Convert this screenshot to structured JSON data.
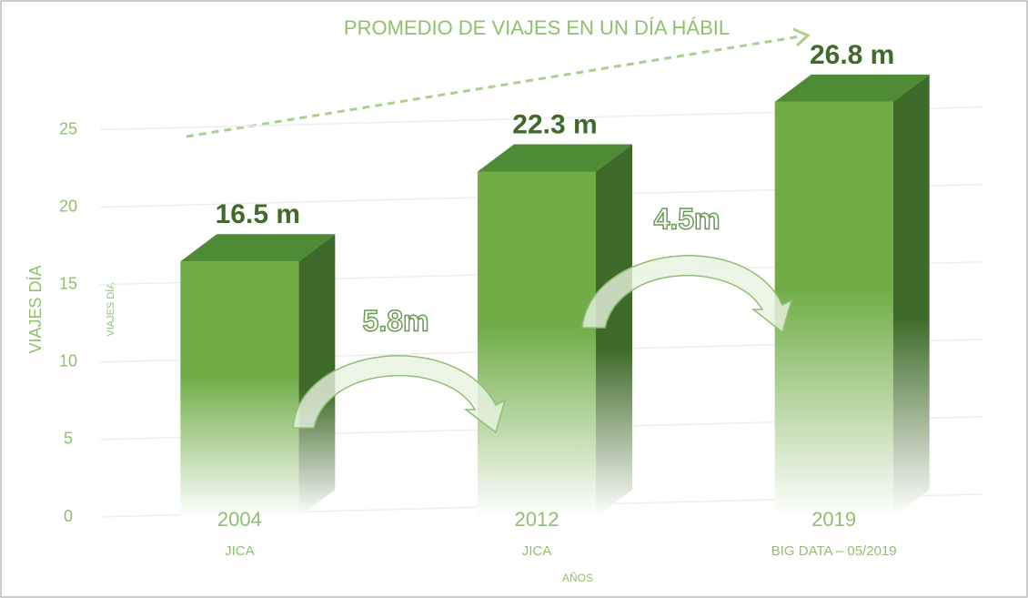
{
  "chart_data": {
    "type": "bar3d",
    "title": "PROMEDIO DE VIAJES EN UN DÍA HÁBIL",
    "y_label": "VIAJES DÍA",
    "y_label_small": "VIAJES DÍA",
    "x_label": "AÑOS",
    "categories": [
      "2004",
      "2012",
      "2019"
    ],
    "category_sources": [
      "JICA",
      "JICA",
      "BIG DATA – 05/2019"
    ],
    "values": [
      16.5,
      22.3,
      26.8
    ],
    "value_labels": [
      "16.5 m",
      "22.3 m",
      "26.8 m"
    ],
    "annotations": [
      "5.8m",
      "4.5m"
    ],
    "color": "#70ad47",
    "ylim": [
      0,
      27.5
    ],
    "yticks": [
      0,
      5,
      10,
      15,
      20,
      25
    ],
    "grid": true
  }
}
